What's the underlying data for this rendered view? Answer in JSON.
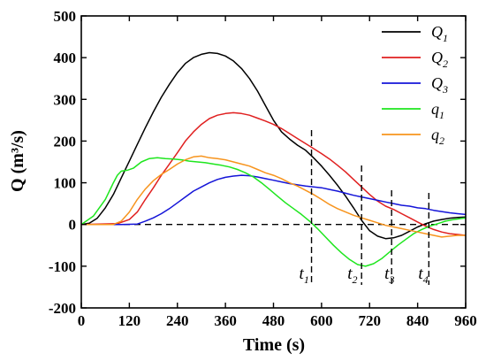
{
  "chart_data": {
    "type": "line",
    "title": "",
    "xlabel": "Time (s)",
    "ylabel": "Q (m³/s)",
    "xlim": [
      0,
      960
    ],
    "ylim": [
      -200,
      500
    ],
    "xticks": [
      0,
      120,
      240,
      360,
      480,
      600,
      720,
      840,
      960
    ],
    "yticks": [
      -200,
      -100,
      0,
      100,
      200,
      300,
      400,
      500
    ],
    "grid": false,
    "legend_placement": "top-right",
    "series": [
      {
        "name": "Q",
        "subscript": "1",
        "color": "#000000",
        "x": [
          0,
          20,
          40,
          60,
          80,
          100,
          120,
          140,
          160,
          180,
          200,
          220,
          240,
          260,
          280,
          300,
          320,
          340,
          360,
          380,
          400,
          420,
          440,
          460,
          480,
          500,
          520,
          540,
          560,
          580,
          600,
          620,
          640,
          660,
          680,
          700,
          720,
          740,
          760,
          780,
          800,
          820,
          840,
          860,
          880,
          900,
          920,
          940,
          960
        ],
        "y": [
          0,
          3,
          15,
          40,
          72,
          112,
          152,
          192,
          232,
          270,
          305,
          336,
          364,
          386,
          400,
          408,
          412,
          410,
          404,
          392,
          374,
          350,
          320,
          285,
          250,
          222,
          205,
          190,
          178,
          160,
          140,
          118,
          94,
          68,
          40,
          10,
          -15,
          -28,
          -34,
          -32,
          -26,
          -16,
          -6,
          2,
          8,
          12,
          15,
          17,
          18
        ]
      },
      {
        "name": "Q",
        "subscript": "2",
        "color": "#e02020",
        "x": [
          0,
          90,
          120,
          140,
          160,
          180,
          200,
          220,
          240,
          260,
          280,
          300,
          320,
          340,
          360,
          380,
          400,
          420,
          440,
          460,
          480,
          500,
          520,
          540,
          560,
          580,
          600,
          620,
          640,
          660,
          680,
          700,
          720,
          740,
          760,
          780,
          800,
          820,
          840,
          860,
          880,
          900,
          920,
          940,
          960
        ],
        "y": [
          0,
          2,
          12,
          30,
          60,
          88,
          118,
          145,
          172,
          200,
          222,
          240,
          254,
          262,
          266,
          268,
          266,
          262,
          255,
          248,
          240,
          230,
          218,
          206,
          194,
          182,
          170,
          157,
          142,
          126,
          108,
          90,
          72,
          56,
          44,
          36,
          26,
          16,
          6,
          -4,
          -12,
          -18,
          -22,
          -24,
          -26
        ]
      },
      {
        "name": "Q",
        "subscript": "3",
        "color": "#1414d8",
        "x": [
          0,
          100,
          140,
          160,
          180,
          200,
          220,
          240,
          260,
          280,
          300,
          320,
          340,
          360,
          380,
          400,
          420,
          440,
          460,
          480,
          500,
          520,
          540,
          560,
          580,
          600,
          620,
          640,
          660,
          680,
          700,
          720,
          740,
          760,
          780,
          800,
          820,
          840,
          860,
          880,
          900,
          920,
          940,
          960
        ],
        "y": [
          0,
          0,
          1,
          8,
          16,
          26,
          38,
          52,
          66,
          80,
          90,
          100,
          108,
          113,
          116,
          118,
          117,
          114,
          110,
          106,
          102,
          98,
          95,
          92,
          90,
          88,
          84,
          80,
          75,
          70,
          66,
          62,
          58,
          54,
          50,
          46,
          44,
          40,
          38,
          34,
          31,
          28,
          26,
          24
        ]
      },
      {
        "name": "q",
        "subscript": "1",
        "color": "#1ee61e",
        "x": [
          0,
          30,
          60,
          80,
          90,
          100,
          115,
          130,
          150,
          170,
          190,
          210,
          230,
          250,
          270,
          290,
          310,
          330,
          350,
          370,
          390,
          410,
          430,
          450,
          470,
          490,
          510,
          530,
          550,
          570,
          590,
          610,
          630,
          650,
          670,
          690,
          710,
          730,
          750,
          770,
          790,
          810,
          830,
          850,
          870,
          890,
          910,
          930,
          960
        ],
        "y": [
          0,
          20,
          60,
          100,
          118,
          128,
          130,
          135,
          150,
          158,
          160,
          158,
          157,
          155,
          152,
          150,
          148,
          145,
          142,
          138,
          132,
          124,
          114,
          100,
          84,
          68,
          52,
          38,
          24,
          8,
          -10,
          -30,
          -50,
          -68,
          -84,
          -96,
          -100,
          -94,
          -82,
          -66,
          -50,
          -36,
          -22,
          -12,
          -4,
          2,
          8,
          12,
          16
        ]
      },
      {
        "name": "q",
        "subscript": "2",
        "color": "#f7941d",
        "x": [
          0,
          80,
          100,
          120,
          140,
          160,
          180,
          200,
          220,
          240,
          260,
          280,
          300,
          320,
          340,
          360,
          380,
          400,
          420,
          440,
          460,
          480,
          500,
          520,
          540,
          560,
          580,
          600,
          620,
          640,
          660,
          680,
          700,
          720,
          740,
          760,
          780,
          800,
          820,
          840,
          860,
          880,
          900,
          920,
          940,
          960
        ],
        "y": [
          0,
          0,
          8,
          30,
          60,
          85,
          105,
          120,
          132,
          145,
          155,
          162,
          164,
          160,
          158,
          155,
          150,
          145,
          140,
          132,
          124,
          118,
          110,
          100,
          92,
          82,
          72,
          60,
          48,
          38,
          30,
          22,
          16,
          10,
          4,
          -2,
          -6,
          -10,
          -14,
          -18,
          -22,
          -26,
          -30,
          -28,
          -26,
          -26
        ]
      }
    ],
    "annotations": [
      {
        "label": "t",
        "subscript": "1",
        "x": 575
      },
      {
        "label": "t",
        "subscript": "2",
        "x": 700
      },
      {
        "label": "t",
        "subscript": "3",
        "x": 775
      },
      {
        "label": "t",
        "subscript": "4",
        "x": 868
      }
    ]
  }
}
